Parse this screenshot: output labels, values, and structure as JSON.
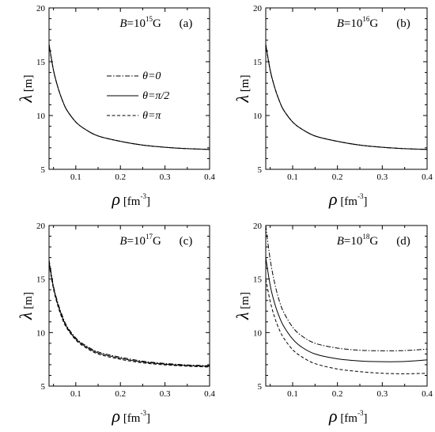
{
  "chart_data": [
    {
      "type": "line",
      "panel": "(a)",
      "field_label": {
        "var": "B",
        "base": "=10",
        "exp": "15",
        "unit": "G"
      },
      "xlabel": {
        "symbol": "ρ",
        "unit": "[fm",
        "exp": "-3",
        "close": "]"
      },
      "ylabel": {
        "symbol": "λ",
        "unit": "[m]"
      },
      "xlim": [
        0.04,
        0.4
      ],
      "ylim": [
        5,
        20
      ],
      "xticks": [
        0.1,
        0.2,
        0.3,
        0.4
      ],
      "yticks": [
        5,
        10,
        15,
        20
      ],
      "legend": "center-left",
      "x": [
        0.04,
        0.05,
        0.06,
        0.07,
        0.08,
        0.1,
        0.12,
        0.15,
        0.2,
        0.25,
        0.3,
        0.35,
        0.4
      ],
      "series": [
        {
          "name": "θ=0",
          "style": "dashdot",
          "values": [
            16.6,
            14.2,
            12.6,
            11.4,
            10.5,
            9.4,
            8.75,
            8.1,
            7.6,
            7.25,
            7.05,
            6.92,
            6.85
          ]
        },
        {
          "name": "θ=π/2",
          "style": "solid",
          "values": [
            16.6,
            14.2,
            12.6,
            11.4,
            10.5,
            9.4,
            8.75,
            8.1,
            7.6,
            7.25,
            7.05,
            6.92,
            6.85
          ]
        },
        {
          "name": "θ=π",
          "style": "dashed",
          "values": [
            16.6,
            14.2,
            12.6,
            11.4,
            10.5,
            9.4,
            8.75,
            8.1,
            7.6,
            7.25,
            7.05,
            6.92,
            6.85
          ]
        }
      ]
    },
    {
      "type": "line",
      "panel": "(b)",
      "field_label": {
        "var": "B",
        "base": "=10",
        "exp": "16",
        "unit": "G"
      },
      "xlabel": {
        "symbol": "ρ",
        "unit": "[fm",
        "exp": "-3",
        "close": "]"
      },
      "ylabel": {
        "symbol": "λ",
        "unit": "[m]"
      },
      "xlim": [
        0.04,
        0.4
      ],
      "ylim": [
        5,
        20
      ],
      "xticks": [
        0.1,
        0.2,
        0.3,
        0.4
      ],
      "yticks": [
        5,
        10,
        15,
        20
      ],
      "x": [
        0.04,
        0.05,
        0.06,
        0.07,
        0.08,
        0.1,
        0.12,
        0.15,
        0.2,
        0.25,
        0.3,
        0.35,
        0.4
      ],
      "series": [
        {
          "style": "dashdot",
          "values": [
            16.6,
            14.2,
            12.6,
            11.4,
            10.5,
            9.4,
            8.75,
            8.1,
            7.6,
            7.25,
            7.05,
            6.92,
            6.85
          ]
        },
        {
          "style": "solid",
          "values": [
            16.6,
            14.2,
            12.6,
            11.4,
            10.5,
            9.4,
            8.75,
            8.1,
            7.6,
            7.25,
            7.05,
            6.92,
            6.85
          ]
        },
        {
          "style": "dashed",
          "values": [
            16.6,
            14.2,
            12.6,
            11.4,
            10.5,
            9.4,
            8.75,
            8.1,
            7.6,
            7.25,
            7.05,
            6.92,
            6.85
          ]
        }
      ]
    },
    {
      "type": "line",
      "panel": "(c)",
      "field_label": {
        "var": "B",
        "base": "=10",
        "exp": "17",
        "unit": "G"
      },
      "xlabel": {
        "symbol": "ρ",
        "unit": "[fm",
        "exp": "-3",
        "close": "]"
      },
      "ylabel": {
        "symbol": "λ",
        "unit": "[m]"
      },
      "xlim": [
        0.04,
        0.4
      ],
      "ylim": [
        5,
        20
      ],
      "xticks": [
        0.1,
        0.2,
        0.3,
        0.4
      ],
      "yticks": [
        5,
        10,
        15,
        20
      ],
      "x": [
        0.04,
        0.05,
        0.06,
        0.07,
        0.08,
        0.1,
        0.12,
        0.15,
        0.2,
        0.25,
        0.3,
        0.35,
        0.4
      ],
      "series": [
        {
          "style": "dashdot",
          "values": [
            16.8,
            14.35,
            12.75,
            11.55,
            10.6,
            9.5,
            8.85,
            8.2,
            7.7,
            7.33,
            7.12,
            6.98,
            6.9
          ]
        },
        {
          "style": "solid",
          "values": [
            16.6,
            14.2,
            12.6,
            11.4,
            10.5,
            9.4,
            8.75,
            8.1,
            7.6,
            7.25,
            7.05,
            6.92,
            6.85
          ]
        },
        {
          "style": "dashed",
          "values": [
            16.4,
            14.05,
            12.45,
            11.25,
            10.4,
            9.3,
            8.65,
            8.0,
            7.5,
            7.17,
            6.98,
            6.86,
            6.78
          ]
        }
      ]
    },
    {
      "type": "line",
      "panel": "(d)",
      "field_label": {
        "var": "B",
        "base": "=10",
        "exp": "18",
        "unit": "G"
      },
      "xlabel": {
        "symbol": "ρ",
        "unit": "[fm",
        "exp": "-3",
        "close": "]"
      },
      "ylabel": {
        "symbol": "λ",
        "unit": "[m]"
      },
      "xlim": [
        0.04,
        0.4
      ],
      "ylim": [
        5,
        20
      ],
      "xticks": [
        0.1,
        0.2,
        0.3,
        0.4
      ],
      "yticks": [
        5,
        10,
        15,
        20
      ],
      "x": [
        0.04,
        0.05,
        0.06,
        0.07,
        0.08,
        0.1,
        0.12,
        0.15,
        0.2,
        0.25,
        0.3,
        0.35,
        0.4
      ],
      "series": [
        {
          "style": "dashdot",
          "values": [
            20.0,
            16.8,
            14.6,
            13.0,
            11.9,
            10.5,
            9.7,
            9.0,
            8.55,
            8.35,
            8.3,
            8.32,
            8.45
          ]
        },
        {
          "style": "solid",
          "values": [
            17.0,
            14.4,
            12.7,
            11.5,
            10.6,
            9.4,
            8.65,
            8.0,
            7.55,
            7.35,
            7.28,
            7.3,
            7.45
          ]
        },
        {
          "style": "dashed",
          "values": [
            15.0,
            12.9,
            11.4,
            10.3,
            9.5,
            8.4,
            7.75,
            7.1,
            6.6,
            6.35,
            6.2,
            6.15,
            6.2
          ]
        }
      ]
    }
  ]
}
